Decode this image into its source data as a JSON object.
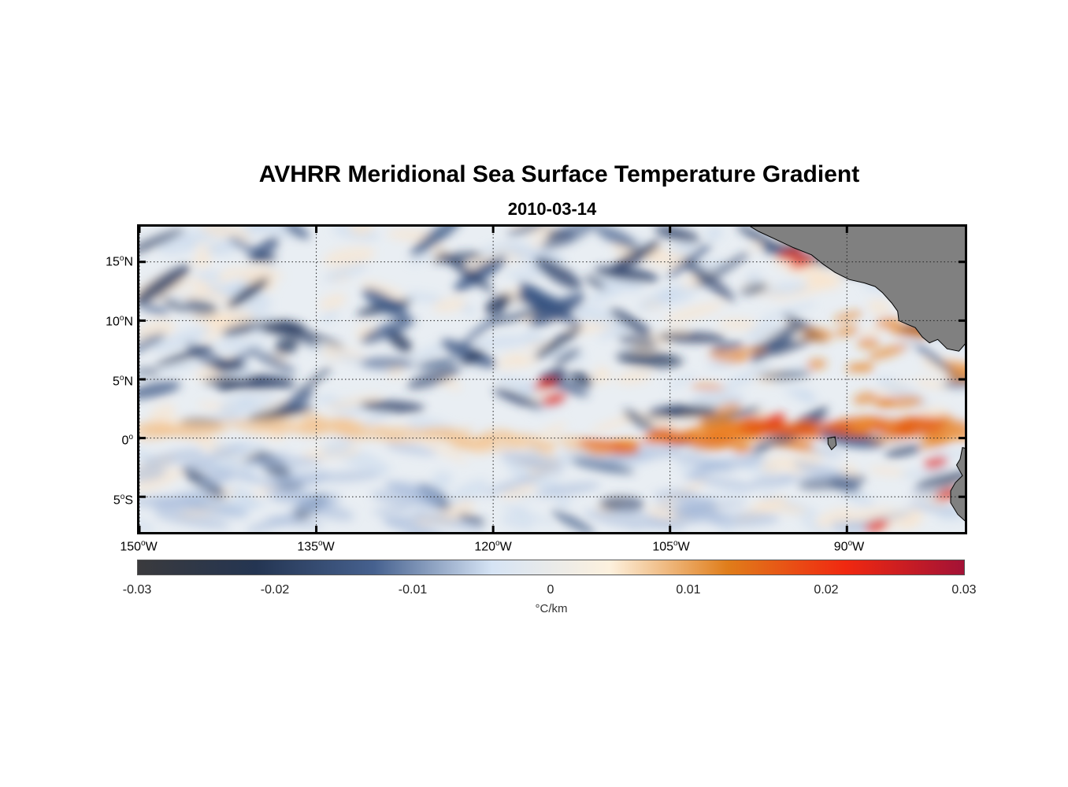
{
  "title": "AVHRR Meridional Sea Surface Temperature Gradient",
  "subtitle": "2010-03-14",
  "map": {
    "lon_range": [
      -150,
      -80
    ],
    "lat_range": [
      -8,
      18
    ],
    "lat_labels": [
      {
        "deg": "15",
        "hemi": "N",
        "lat": 15
      },
      {
        "deg": "10",
        "hemi": "N",
        "lat": 10
      },
      {
        "deg": "5",
        "hemi": "N",
        "lat": 5
      },
      {
        "deg": "0",
        "hemi": "",
        "lat": 0
      },
      {
        "deg": "5",
        "hemi": "S",
        "lat": -5
      }
    ],
    "lon_labels": [
      {
        "deg": "150",
        "hemi": "W",
        "lon": -150
      },
      {
        "deg": "135",
        "hemi": "W",
        "lon": -135
      },
      {
        "deg": "120",
        "hemi": "W",
        "lon": -120
      },
      {
        "deg": "105",
        "hemi": "W",
        "lon": -105
      },
      {
        "deg": "90",
        "hemi": "W",
        "lon": -90
      }
    ],
    "land_color": "#808080"
  },
  "colorbar": {
    "ticks": [
      "-0.03",
      "-0.02",
      "-0.01",
      "0",
      "0.01",
      "0.02",
      "0.03"
    ],
    "unit": "°C/km",
    "colors": [
      "#3a3a3d",
      "#243552",
      "#46618f",
      "#d6e4f5",
      "#fdf1de",
      "#e07d1a",
      "#f02810",
      "#a31236"
    ]
  }
}
